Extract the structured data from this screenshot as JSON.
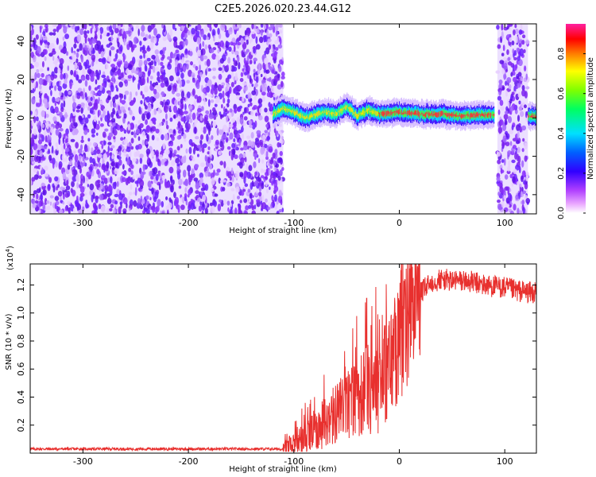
{
  "title": "C2E5.2026.020.23.44.G12",
  "chart_data": [
    {
      "type": "heatmap",
      "xlabel": "Height of straight line (km)",
      "ylabel": "Frequency (Hz)",
      "xlim": [
        -350,
        130
      ],
      "ylim": [
        -50,
        49
      ],
      "x_ticks": [
        -300,
        -200,
        -100,
        0,
        100
      ],
      "y_ticks": [
        -40,
        -20,
        0,
        20,
        40
      ],
      "colorbar": {
        "label": "Normalized spectral amplitude",
        "range": [
          0,
          0.95
        ],
        "ticks": [
          0.0,
          0.2,
          0.4,
          0.6,
          0.8
        ],
        "colors": [
          "#ffffff",
          "#e9a6ff",
          "#b040ff",
          "#3000ff",
          "#0060ff",
          "#00e0ff",
          "#00ff60",
          "#80ff00",
          "#ffff00",
          "#ff8000",
          "#ff0000",
          "#ff20a0"
        ]
      },
      "regions": [
        {
          "name": "noise",
          "x_range": [
            -350,
            -110
          ],
          "y_range": [
            -50,
            49
          ]
        },
        {
          "name": "signal",
          "x_range": [
            -120,
            90
          ],
          "center_hz": [
            [
              -120,
              2
            ],
            [
              -110,
              5
            ],
            [
              -100,
              3
            ],
            [
              -90,
              0
            ],
            [
              -70,
              3
            ],
            [
              -60,
              2
            ],
            [
              -50,
              6
            ],
            [
              -40,
              1
            ],
            [
              -30,
              4
            ],
            [
              -20,
              2
            ],
            [
              0,
              3
            ],
            [
              20,
              2
            ],
            [
              40,
              2
            ],
            [
              60,
              1
            ],
            [
              90,
              2
            ]
          ]
        },
        {
          "name": "noise",
          "x_range": [
            93,
            122
          ],
          "y_range": [
            -50,
            49
          ]
        },
        {
          "name": "signal",
          "x_range": [
            122,
            130
          ],
          "center_hz": [
            [
              122,
              1
            ],
            [
              130,
              1
            ]
          ]
        }
      ]
    },
    {
      "type": "line",
      "xlabel": "Height of straight line (km)",
      "ylabel": "SNR (10 * v/v)",
      "y_multiplier": "(x10",
      "y_multiplier_exp": "4",
      "y_multiplier_close": ")",
      "xlim": [
        -350,
        130
      ],
      "ylim": [
        0,
        1.35
      ],
      "x_ticks": [
        -300,
        -200,
        -100,
        0,
        100
      ],
      "y_ticks": [
        0.2,
        0.4,
        0.6,
        0.8,
        1.0,
        1.2
      ],
      "series": [
        {
          "color": "#e8302e",
          "x": [
            -350,
            -110,
            -100,
            -90,
            -80,
            -70,
            -60,
            -50,
            -40,
            -30,
            -20,
            -10,
            0,
            10,
            20,
            30,
            40,
            50,
            60,
            70,
            80,
            90,
            100,
            110,
            120,
            130
          ],
          "y": [
            0.03,
            0.03,
            0.06,
            0.1,
            0.16,
            0.22,
            0.28,
            0.35,
            0.4,
            0.45,
            0.5,
            0.62,
            0.8,
            0.98,
            1.14,
            1.22,
            1.24,
            1.23,
            1.23,
            1.22,
            1.2,
            1.19,
            1.18,
            1.16,
            1.15,
            1.14
          ]
        }
      ]
    }
  ]
}
